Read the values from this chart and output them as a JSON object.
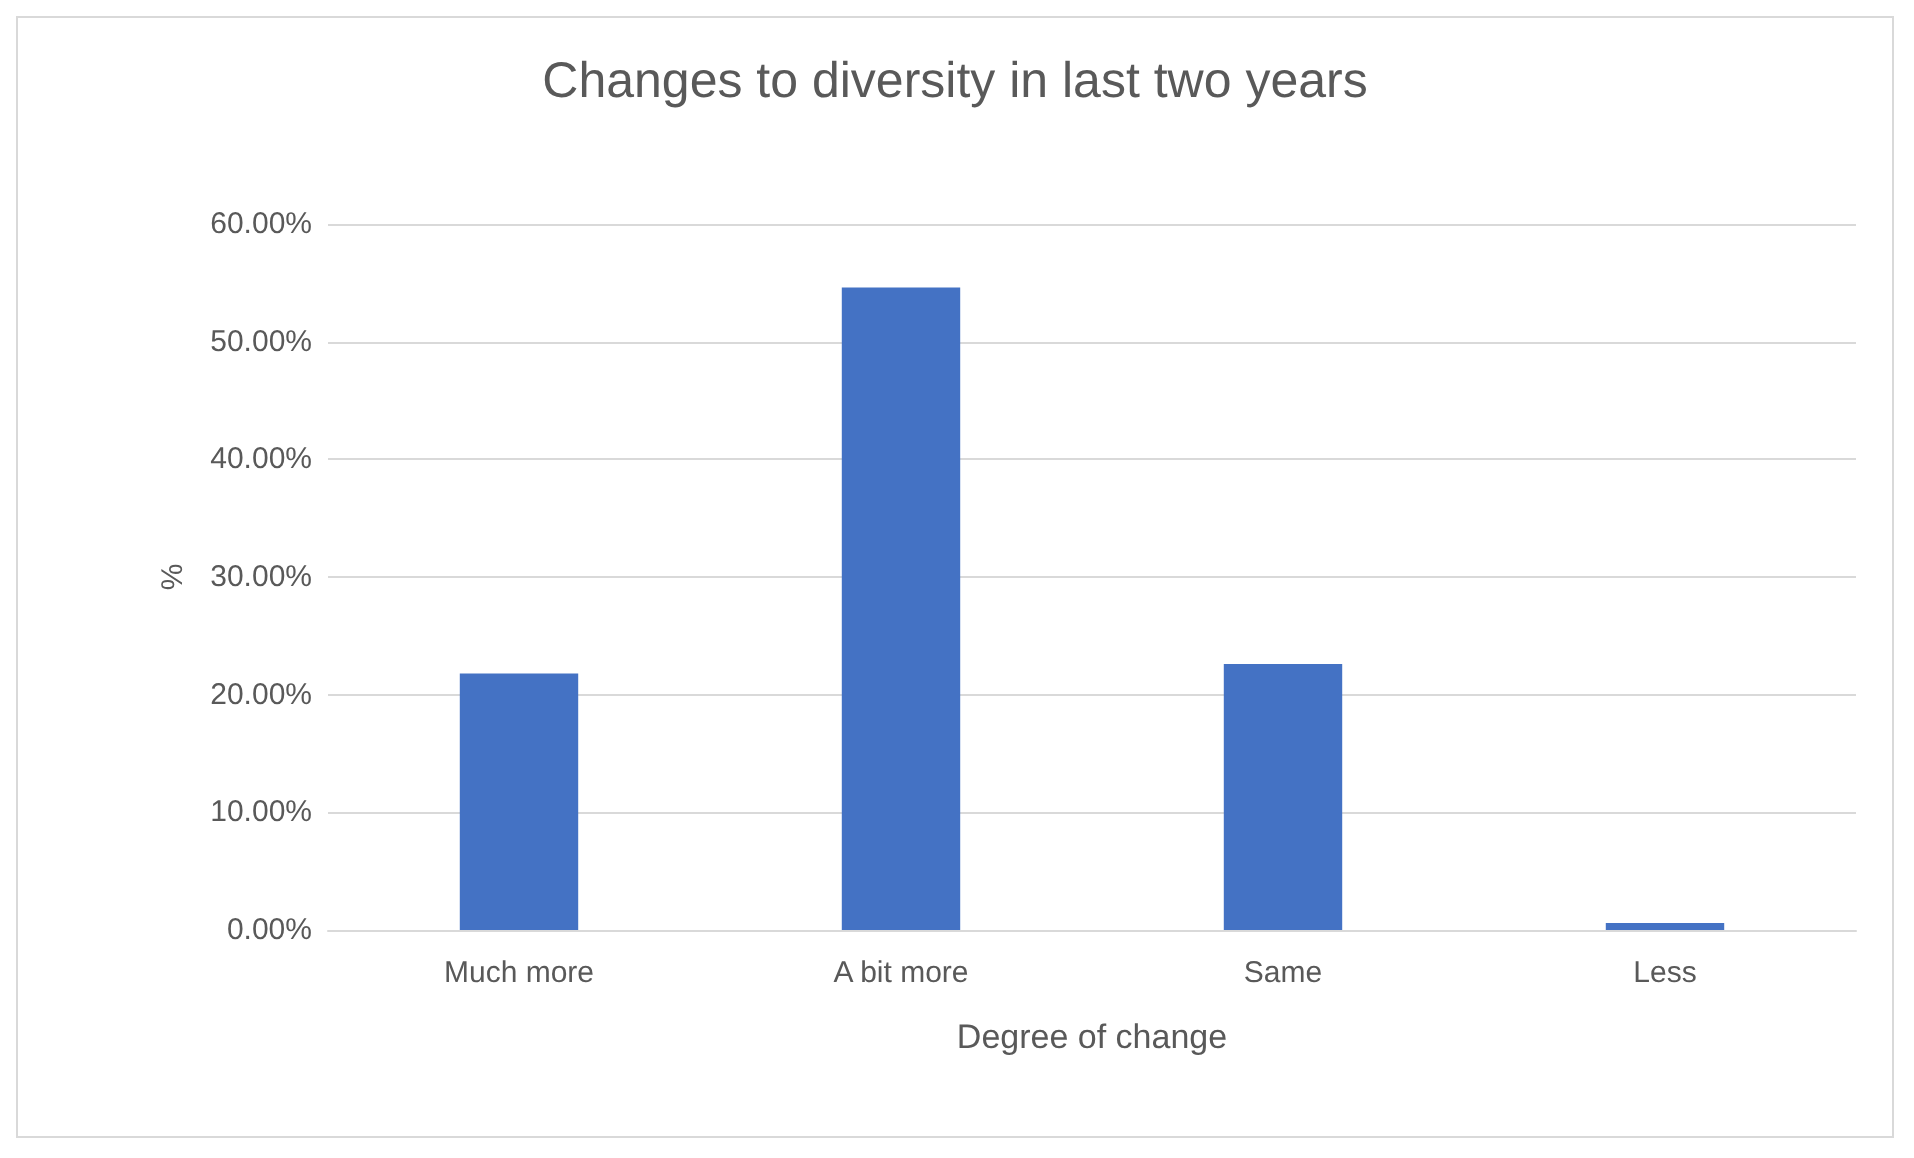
{
  "chart_data": {
    "type": "bar",
    "title": "Changes to diversity in last two years",
    "xlabel": "Degree of change",
    "ylabel": "%",
    "categories": [
      "Much more",
      "A bit more",
      "Same",
      "Less"
    ],
    "values": [
      21.8,
      54.6,
      22.6,
      0.6
    ],
    "color": "#4472c4",
    "ylim": [
      0,
      60
    ],
    "yticks": [
      {
        "value": 0,
        "label": "0.00%"
      },
      {
        "value": 10,
        "label": "10.00%"
      },
      {
        "value": 20,
        "label": "20.00%"
      },
      {
        "value": 30,
        "label": "30.00%"
      },
      {
        "value": 40,
        "label": "40.00%"
      },
      {
        "value": 50,
        "label": "50.00%"
      },
      {
        "value": 60,
        "label": "60.00%"
      }
    ],
    "grid": "y"
  }
}
